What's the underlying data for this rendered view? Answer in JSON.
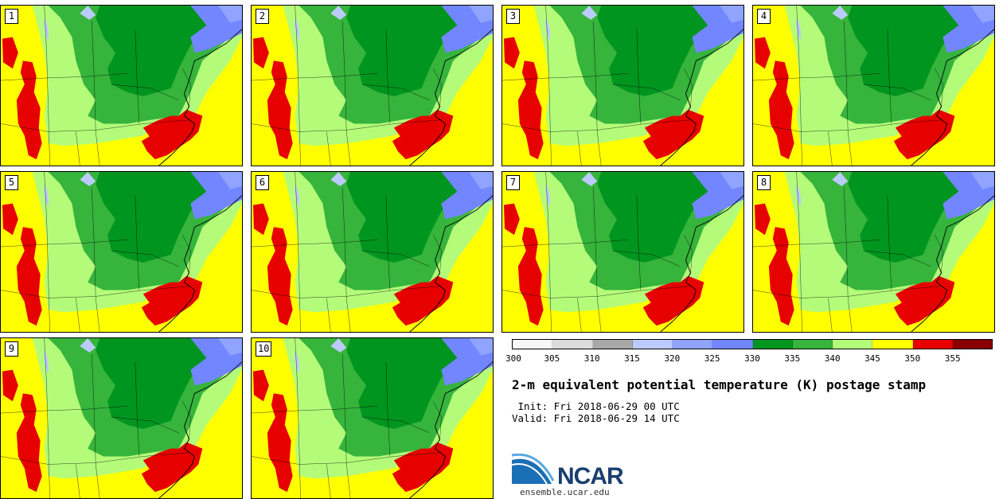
{
  "panels": [
    {
      "label": "1"
    },
    {
      "label": "2"
    },
    {
      "label": "3"
    },
    {
      "label": "4"
    },
    {
      "label": "5"
    },
    {
      "label": "6"
    },
    {
      "label": "7"
    },
    {
      "label": "8"
    },
    {
      "label": "9"
    },
    {
      "label": "10"
    }
  ],
  "colorbar": {
    "ticks": [
      "300",
      "305",
      "310",
      "315",
      "320",
      "325",
      "330",
      "335",
      "340",
      "345",
      "350",
      "355"
    ],
    "colors": [
      "#f7f7f7",
      "#dcdcdc",
      "#a8a8a8",
      "#bccbff",
      "#8fa3ff",
      "#7286ff",
      "#00951f",
      "#36b43c",
      "#b4fb7a",
      "#ffff00",
      "#e60000",
      "#8a0000"
    ]
  },
  "title": "2-m equivalent potential temperature (K) postage stamp",
  "init": " Init: Fri 2018-06-29 00 UTC",
  "valid": "Valid: Fri 2018-06-29 14 UTC",
  "logo": {
    "text": "NCAR",
    "url": "ensemble.ucar.edu"
  }
}
